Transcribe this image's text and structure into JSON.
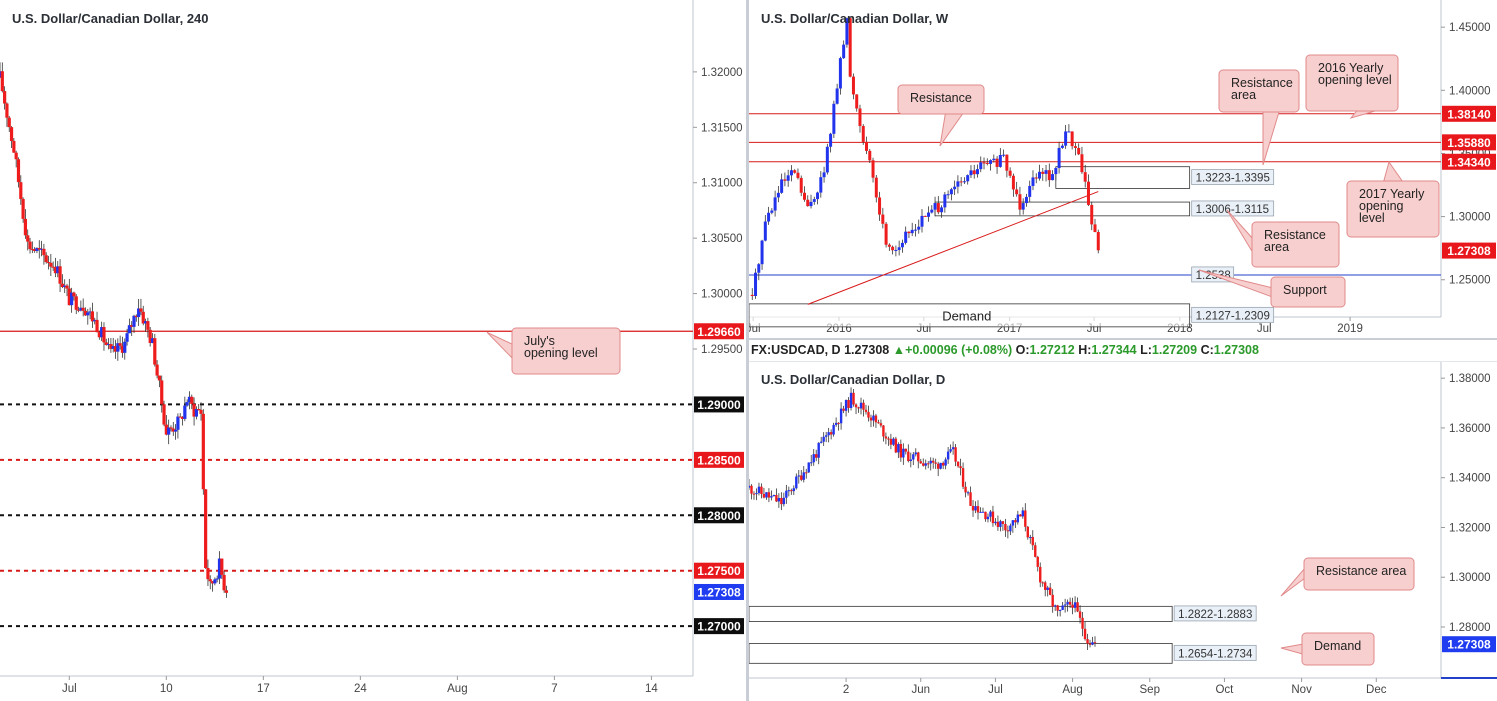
{
  "colors": {
    "up": "#2233ee",
    "down": "#ee1c1c",
    "resistance_line": "#d91a1a",
    "support_line": "#2340c8",
    "price_tag": "#1f3cf0",
    "callout_fill": "#f8cfcf",
    "callout_border": "#e08a8a",
    "zone_fill": "#e9f0f8",
    "zone_border": "#333333"
  },
  "left": {
    "title": "U.S. Dollar/Canadian Dollar, 240",
    "x_ticks": [
      "Jul",
      "10",
      "17",
      "24",
      "Aug",
      "7",
      "14"
    ],
    "y_ticks": [
      "1.32000",
      "1.31500",
      "1.31000",
      "1.30500",
      "1.30000",
      "1.29500"
    ],
    "level_tags": [
      {
        "value": 1.2966,
        "text": "1.29660",
        "style": "red"
      },
      {
        "value": 1.29,
        "text": "1.29000",
        "style": "black"
      },
      {
        "value": 1.285,
        "text": "1.28500",
        "style": "red"
      },
      {
        "value": 1.28,
        "text": "1.28000",
        "style": "black"
      },
      {
        "value": 1.275,
        "text": "1.27500",
        "style": "red"
      },
      {
        "value": 1.27308,
        "text": "1.27308",
        "style": "blue"
      },
      {
        "value": 1.27,
        "text": "1.27000",
        "style": "black"
      }
    ],
    "callout": "July's opening level",
    "chart_data": {
      "type": "candlestick",
      "title": "U.S. Dollar/Canadian Dollar, 240",
      "ylim": [
        1.2655,
        1.3245
      ],
      "x_range": [
        "2017-06-28",
        "2017-08-17"
      ],
      "horizontal_lines": [
        {
          "value": 1.2966,
          "style": "solid",
          "color": "red"
        },
        {
          "value": 1.29,
          "style": "dashed",
          "color": "black"
        },
        {
          "value": 1.285,
          "style": "dashed",
          "color": "red"
        },
        {
          "value": 1.28,
          "style": "dashed",
          "color": "black"
        },
        {
          "value": 1.275,
          "style": "dashed",
          "color": "red"
        },
        {
          "value": 1.27,
          "style": "dashed",
          "color": "black"
        }
      ],
      "anchors": [
        [
          "2017-06-28",
          1.3195
        ],
        [
          "2017-06-29",
          1.313
        ],
        [
          "2017-06-30",
          1.3045
        ],
        [
          "2017-07-02",
          1.3025
        ],
        [
          "2017-07-03",
          1.2995
        ],
        [
          "2017-07-04",
          1.299
        ],
        [
          "2017-07-05",
          1.2972
        ],
        [
          "2017-07-06",
          1.2945
        ],
        [
          "2017-07-07",
          1.2955
        ],
        [
          "2017-07-08",
          1.299
        ],
        [
          "2017-07-09",
          1.2955
        ],
        [
          "2017-07-10",
          1.2875
        ],
        [
          "2017-07-11",
          1.2885
        ],
        [
          "2017-07-11 12:00",
          1.2905
        ],
        [
          "2017-07-12",
          1.2895
        ],
        [
          "2017-07-12 12:00",
          1.2895
        ],
        [
          "2017-07-12 20:00",
          1.2755
        ],
        [
          "2017-07-13 04:00",
          1.2735
        ],
        [
          "2017-07-13 12:00",
          1.2745
        ],
        [
          "2017-07-13 20:00",
          1.2755
        ],
        [
          "2017-07-14 04:00",
          1.2738
        ],
        [
          "2017-07-14 12:00",
          1.2731
        ]
      ],
      "last_price": 1.27308
    }
  },
  "weekly": {
    "title": "U.S. Dollar/Canadian Dollar, W",
    "x_ticks": [
      "Jul",
      "2016",
      "Jul",
      "2017",
      "Jul",
      "2018",
      "Jul",
      "2019"
    ],
    "y_ticks": [
      "1.45000",
      "1.40000",
      "1.35000",
      "1.30000",
      "1.25000"
    ],
    "level_tags": [
      {
        "value": 1.3814,
        "text": "1.38140",
        "style": "red"
      },
      {
        "value": 1.3588,
        "text": "1.35880",
        "style": "red"
      },
      {
        "value": 1.3434,
        "text": "1.34340",
        "style": "red"
      },
      {
        "value": 1.27308,
        "text": "1.27308",
        "style": "red"
      }
    ],
    "zones": [
      {
        "label": "1.3223-1.3395",
        "low": 1.3223,
        "high": 1.3395
      },
      {
        "label": "1.3006-1.3115",
        "low": 1.3006,
        "high": 1.3115
      },
      {
        "label": "1.2127-1.2309",
        "low": 1.2127,
        "high": 1.2309
      }
    ],
    "support_label": "1.2538",
    "demand_label": "Demand",
    "callouts": {
      "resistance": "Resistance",
      "resistance_area_top": "Resistance area",
      "yearly_2016": "2016 Yearly opening level",
      "yearly_2017": "2017 Yearly opening level",
      "resistance_area_right": "Resistance area",
      "support": "Support"
    },
    "chart_data": {
      "type": "candlestick",
      "title": "U.S. Dollar/Canadian Dollar, W",
      "ylim": [
        1.2205,
        1.4715
      ],
      "x_range": [
        "2015-06-22",
        "2019-07-15"
      ],
      "horizontal_lines": [
        {
          "value": 1.3814,
          "color": "red",
          "label": "1.38140"
        },
        {
          "value": 1.3588,
          "color": "red",
          "label": "1.35880"
        },
        {
          "value": 1.3434,
          "color": "red",
          "label": "1.34340"
        },
        {
          "value": 1.2538,
          "color": "blue",
          "label": "1.2538"
        }
      ],
      "trendline": [
        [
          "2015-10-26",
          1.2305
        ],
        [
          "2017-07-10",
          1.3198
        ]
      ],
      "anchors": [
        [
          "2015-06-29",
          1.238
        ],
        [
          "2015-07-27",
          1.296
        ],
        [
          "2015-08-31",
          1.325
        ],
        [
          "2015-09-28",
          1.335
        ],
        [
          "2015-10-26",
          1.305
        ],
        [
          "2015-11-30",
          1.335
        ],
        [
          "2016-01-18",
          1.455
        ],
        [
          "2016-01-25",
          1.41
        ],
        [
          "2016-03-07",
          1.34
        ],
        [
          "2016-04-11",
          1.28
        ],
        [
          "2016-05-02",
          1.275
        ],
        [
          "2016-06-06",
          1.29
        ],
        [
          "2016-07-04",
          1.3
        ],
        [
          "2016-08-08",
          1.31
        ],
        [
          "2016-09-12",
          1.325
        ],
        [
          "2016-10-31",
          1.34
        ],
        [
          "2016-12-19",
          1.345
        ],
        [
          "2017-01-23",
          1.31
        ],
        [
          "2017-03-06",
          1.34
        ],
        [
          "2017-04-03",
          1.33
        ],
        [
          "2017-05-01",
          1.37
        ],
        [
          "2017-05-15",
          1.36
        ],
        [
          "2017-06-05",
          1.34
        ],
        [
          "2017-06-26",
          1.297
        ],
        [
          "2017-07-10",
          1.2731
        ]
      ],
      "last_price": 1.27308
    }
  },
  "daily": {
    "title": "U.S. Dollar/Canadian Dollar, D",
    "quote": {
      "symbol": "FX:USDCAD, D",
      "price": "1.27308",
      "change": "+0.00096 (+0.08%)",
      "o_label": "O:",
      "o": "1.27212",
      "h_label": "H:",
      "h": "1.27344",
      "l_label": "L:",
      "l": "1.27209",
      "c_label": "C:",
      "c": "1.27308"
    },
    "x_ticks": [
      "2",
      "Jun",
      "Jul",
      "Aug",
      "Sep",
      "Oct",
      "Nov",
      "Dec"
    ],
    "y_ticks": [
      "1.38000",
      "1.36000",
      "1.34000",
      "1.32000",
      "1.30000",
      "1.28000"
    ],
    "level_tags": [
      {
        "value": 1.27308,
        "text": "1.27308",
        "style": "blue"
      }
    ],
    "zones": [
      {
        "label": "1.2822-1.2883",
        "low": 1.2822,
        "high": 1.2883
      },
      {
        "label": "1.2654-1.2734",
        "low": 1.2654,
        "high": 1.2734
      }
    ],
    "callouts": {
      "resistance_area": "Resistance area",
      "demand": "Demand"
    },
    "chart_data": {
      "type": "candlestick",
      "title": "U.S. Dollar/Canadian Dollar, D",
      "ylim": [
        1.2595,
        1.3865
      ],
      "x_range": [
        "2017-03-24",
        "2017-12-27"
      ],
      "anchors": [
        [
          "2017-03-24",
          1.336
        ],
        [
          "2017-04-06",
          1.33
        ],
        [
          "2017-04-20",
          1.35
        ],
        [
          "2017-05-04",
          1.372
        ],
        [
          "2017-05-10",
          1.367
        ],
        [
          "2017-05-24",
          1.35
        ],
        [
          "2017-06-07",
          1.345
        ],
        [
          "2017-06-14",
          1.35
        ],
        [
          "2017-06-21",
          1.33
        ],
        [
          "2017-06-28",
          1.325
        ],
        [
          "2017-07-05",
          1.32
        ],
        [
          "2017-07-12",
          1.325
        ],
        [
          "2017-07-19",
          1.3
        ],
        [
          "2017-07-26",
          1.285
        ],
        [
          "2017-08-01",
          1.29
        ],
        [
          "2017-08-07",
          1.275
        ],
        [
          "2017-08-10",
          1.2731
        ]
      ],
      "last_price": 1.27308
    }
  }
}
